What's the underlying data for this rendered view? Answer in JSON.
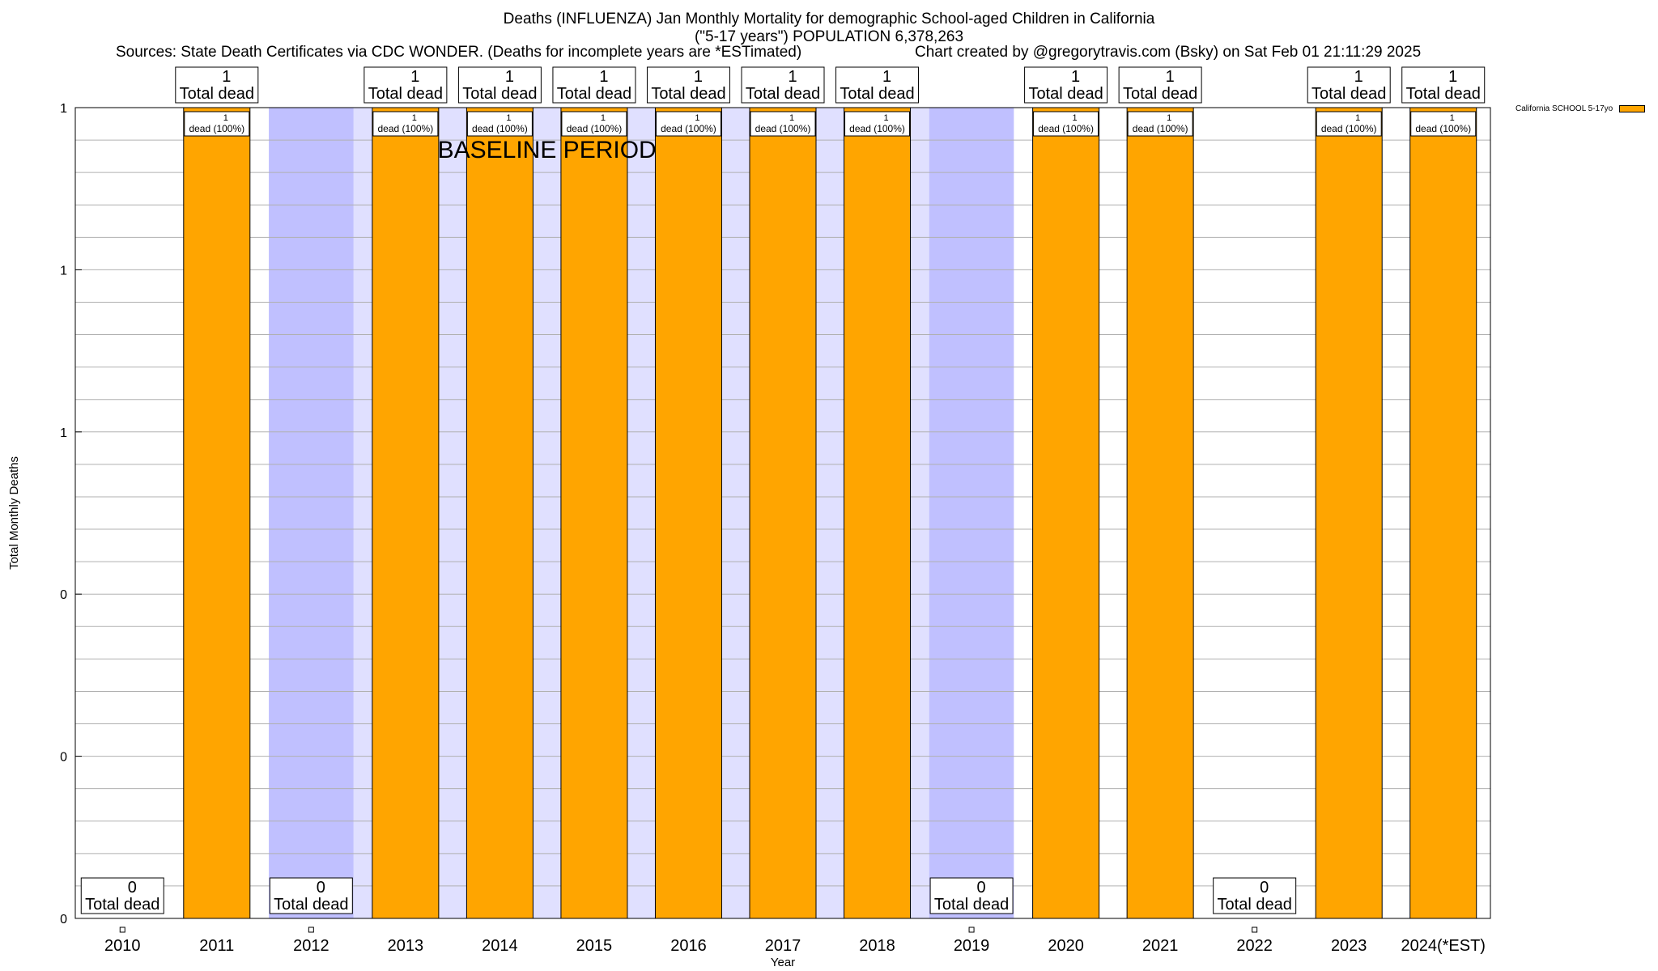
{
  "header": {
    "title_line1": "Deaths (INFLUENZA) Jan Monthly Mortality for demographic School-aged Children in California",
    "title_line2": "(\"5-17 years\") POPULATION 6,378,263",
    "sources": "Sources: State Death Certificates via CDC WONDER. (Deaths for incomplete years are *ESTimated)",
    "credit": "Chart created by @gregorytravis.com (Bsky) on Sat Feb 01 21:11:29 2025"
  },
  "chart_data": {
    "type": "bar",
    "xlabel": "Year",
    "ylabel": "Total Monthly Deaths",
    "ylim": [
      0,
      1
    ],
    "y_tick_labels": [
      "0",
      "0",
      "0",
      "1",
      "1",
      "1"
    ],
    "grid": true,
    "legend_placement": "top-right, outside plot",
    "categories": [
      "2010",
      "2011",
      "2012",
      "2013",
      "2014",
      "2015",
      "2016",
      "2017",
      "2018",
      "2019",
      "2020",
      "2021",
      "2022",
      "2023",
      "2024(*EST)"
    ],
    "series": [
      {
        "name": "California SCHOOL 5-17yo",
        "values": [
          0,
          1,
          0,
          1,
          1,
          1,
          1,
          1,
          1,
          0,
          1,
          1,
          0,
          1,
          1
        ]
      }
    ],
    "total_labels": [
      {
        "count": "0",
        "text": "Total dead"
      },
      {
        "count": "1",
        "text": "Total dead"
      },
      {
        "count": "0",
        "text": "Total dead"
      },
      {
        "count": "1",
        "text": "Total dead"
      },
      {
        "count": "1",
        "text": "Total dead"
      },
      {
        "count": "1",
        "text": "Total dead"
      },
      {
        "count": "1",
        "text": "Total dead"
      },
      {
        "count": "1",
        "text": "Total dead"
      },
      {
        "count": "1",
        "text": "Total dead"
      },
      {
        "count": "0",
        "text": "Total dead"
      },
      {
        "count": "1",
        "text": "Total dead"
      },
      {
        "count": "1",
        "text": "Total dead"
      },
      {
        "count": "0",
        "text": "Total dead"
      },
      {
        "count": "1",
        "text": "Total dead"
      },
      {
        "count": "1",
        "text": "Total dead"
      }
    ],
    "bar_labels": {
      "count": "1",
      "text": "dead (100%)"
    },
    "annotations": {
      "baseline_label": "BASELINE PERIOD",
      "baseline_years": [
        "2012",
        "2013",
        "2014",
        "2015",
        "2016",
        "2017",
        "2018",
        "2019"
      ],
      "highlighted_years": [
        "2012",
        "2019"
      ]
    },
    "colors": {
      "bar": "#FFA500",
      "baseline_band": "#E0E0FF",
      "highlight_band": "#C0C0FF",
      "grid": "#b0b0b0"
    }
  }
}
